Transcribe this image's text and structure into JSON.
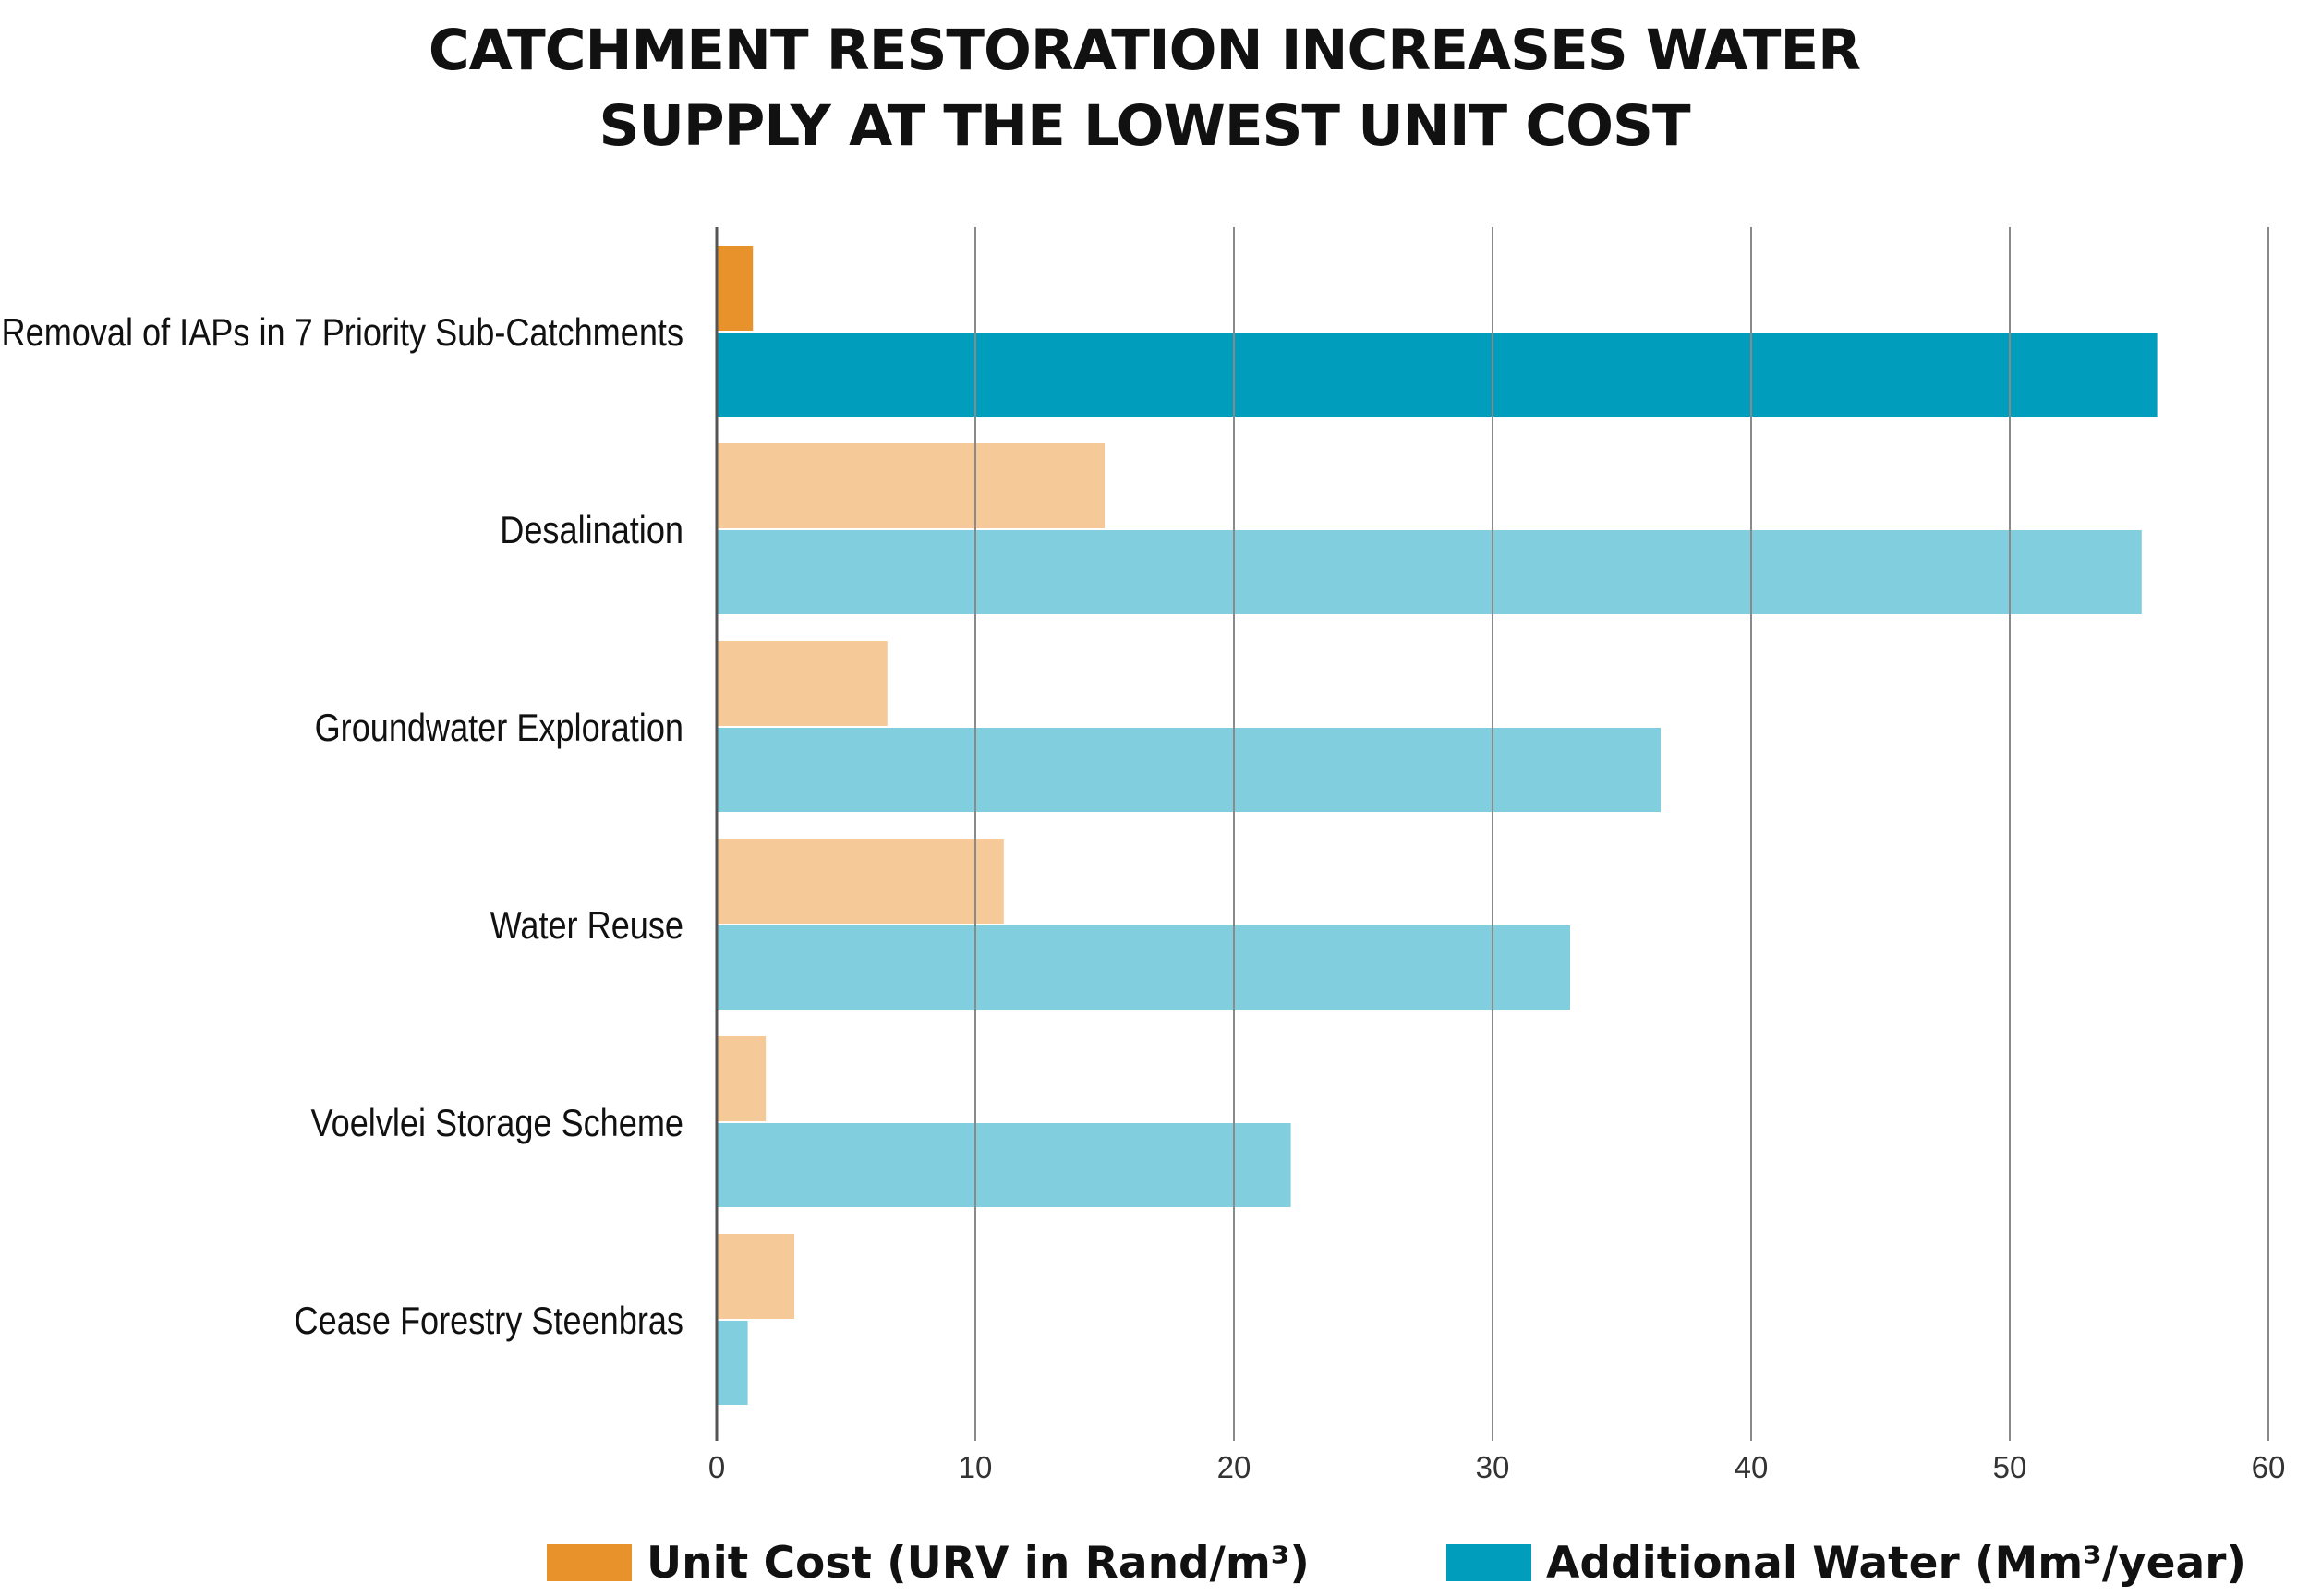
{
  "title": {
    "line1": "CATCHMENT RESTORATION INCREASES WATER",
    "line2": "SUPPLY AT THE LOWEST UNIT COST"
  },
  "colors": {
    "cost_highlight": "#E8922C",
    "cost_muted": "#F6CA98",
    "water_highlight": "#019DBD",
    "water_muted": "#81CEDE",
    "gridline": "#8A8A8A",
    "axis": "#555555"
  },
  "legend": {
    "cost_label": "Unit Cost (URV in Rand/m³)",
    "water_label": "Additional Water (Mm³/year)"
  },
  "chart_data": {
    "type": "bar",
    "orientation": "horizontal",
    "title": "CATCHMENT RESTORATION INCREASES WATER SUPPLY AT THE LOWEST UNIT COST",
    "categories": [
      "Removal of IAPs in 7 Priority Sub-Catchments",
      "Desalination",
      "Groundwater Exploration",
      "Water Reuse",
      "Voelvlei Storage Scheme",
      "Cease Forestry Steenbras"
    ],
    "series": [
      {
        "name": "Unit Cost (URV in Rand/m³)",
        "values": [
          1.4,
          15.0,
          6.6,
          11.1,
          1.9,
          3.0
        ]
      },
      {
        "name": "Additional Water (Mm³/year)",
        "values": [
          55.7,
          55.1,
          36.5,
          33.0,
          22.2,
          1.2
        ]
      }
    ],
    "highlight_category": "Removal of IAPs in 7 Priority Sub-Catchments",
    "xlim": [
      0,
      60
    ],
    "xticks": [
      0,
      10,
      20,
      30,
      40,
      50,
      60
    ],
    "xlabel": "",
    "ylabel": "",
    "grid": true,
    "legend_position": "bottom"
  }
}
